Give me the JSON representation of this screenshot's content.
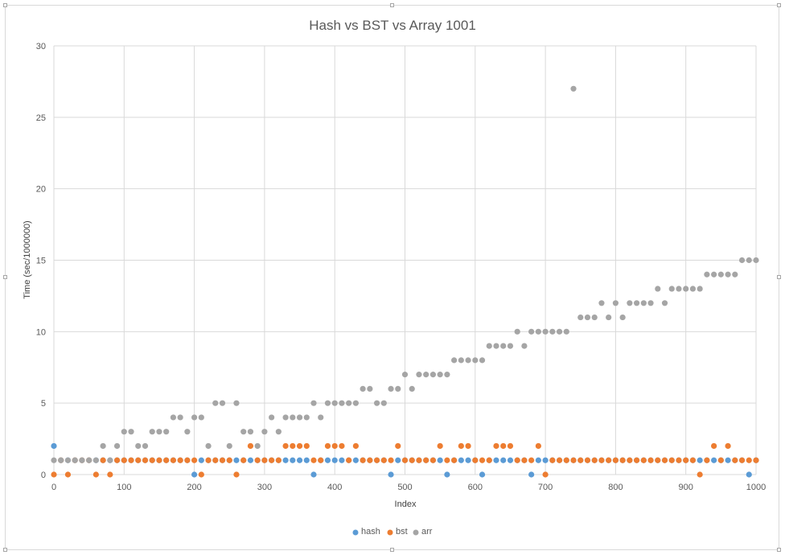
{
  "chart_data": {
    "type": "scatter",
    "title": "Hash vs BST vs Array 1001",
    "xlabel": "Index",
    "ylabel": "Time (sec/1000000)",
    "xlim": [
      0,
      1000
    ],
    "ylim": [
      0,
      30
    ],
    "xticks": [
      0,
      100,
      200,
      300,
      400,
      500,
      600,
      700,
      800,
      900,
      1000
    ],
    "yticks": [
      0,
      5,
      10,
      15,
      20,
      25,
      30
    ],
    "grid": true,
    "legend_position": "bottom",
    "x": [
      0,
      10,
      20,
      30,
      40,
      50,
      60,
      70,
      80,
      90,
      100,
      110,
      120,
      130,
      140,
      150,
      160,
      170,
      180,
      190,
      200,
      210,
      220,
      230,
      240,
      250,
      260,
      270,
      280,
      290,
      300,
      310,
      320,
      330,
      340,
      350,
      360,
      370,
      380,
      390,
      400,
      410,
      420,
      430,
      440,
      450,
      460,
      470,
      480,
      490,
      500,
      510,
      520,
      530,
      540,
      550,
      560,
      570,
      580,
      590,
      600,
      610,
      620,
      630,
      640,
      650,
      660,
      670,
      680,
      690,
      700,
      710,
      720,
      730,
      740,
      750,
      760,
      770,
      780,
      790,
      800,
      810,
      820,
      830,
      840,
      850,
      860,
      870,
      880,
      890,
      900,
      910,
      920,
      930,
      940,
      950,
      960,
      970,
      980,
      990,
      1000
    ],
    "series": [
      {
        "name": "hash",
        "color": "#5b9bd5",
        "values": [
          2,
          1,
          1,
          1,
          1,
          1,
          1,
          1,
          1,
          1,
          1,
          1,
          1,
          1,
          1,
          1,
          1,
          1,
          1,
          1,
          0,
          1,
          1,
          1,
          1,
          1,
          1,
          1,
          1,
          1,
          1,
          1,
          1,
          1,
          1,
          1,
          1,
          0,
          1,
          1,
          1,
          1,
          1,
          1,
          1,
          1,
          1,
          1,
          0,
          1,
          1,
          1,
          1,
          1,
          1,
          1,
          0,
          1,
          1,
          1,
          1,
          0,
          1,
          1,
          1,
          1,
          1,
          1,
          0,
          1,
          1,
          1,
          1,
          1,
          1,
          1,
          1,
          1,
          1,
          1,
          1,
          1,
          1,
          1,
          1,
          1,
          1,
          1,
          1,
          1,
          1,
          1,
          1,
          1,
          1,
          1,
          1,
          1,
          1,
          0,
          1
        ]
      },
      {
        "name": "bst",
        "color": "#ed7d31",
        "values": [
          0,
          1,
          0,
          1,
          1,
          1,
          0,
          1,
          0,
          1,
          1,
          1,
          1,
          1,
          1,
          1,
          1,
          1,
          1,
          1,
          1,
          0,
          1,
          1,
          1,
          1,
          0,
          1,
          2,
          1,
          1,
          1,
          1,
          2,
          2,
          2,
          2,
          1,
          1,
          2,
          2,
          2,
          1,
          2,
          1,
          1,
          1,
          1,
          1,
          2,
          1,
          1,
          1,
          1,
          1,
          2,
          1,
          1,
          2,
          2,
          1,
          1,
          1,
          2,
          2,
          2,
          1,
          1,
          1,
          2,
          0,
          1,
          1,
          1,
          1,
          1,
          1,
          1,
          1,
          1,
          1,
          1,
          1,
          1,
          1,
          1,
          1,
          1,
          1,
          1,
          1,
          1,
          0,
          1,
          2,
          1,
          2,
          1,
          1,
          1,
          1
        ]
      },
      {
        "name": "arr",
        "color": "#a5a5a5",
        "values": [
          1,
          1,
          1,
          1,
          1,
          1,
          1,
          2,
          1,
          2,
          3,
          3,
          2,
          2,
          3,
          3,
          3,
          4,
          4,
          3,
          4,
          4,
          2,
          5,
          5,
          2,
          5,
          3,
          3,
          2,
          3,
          4,
          3,
          4,
          4,
          4,
          4,
          5,
          4,
          5,
          5,
          5,
          5,
          5,
          6,
          6,
          5,
          5,
          6,
          6,
          7,
          6,
          7,
          7,
          7,
          7,
          7,
          8,
          8,
          8,
          8,
          8,
          9,
          9,
          9,
          9,
          10,
          9,
          10,
          10,
          10,
          10,
          10,
          10,
          27,
          11,
          11,
          11,
          12,
          11,
          12,
          11,
          12,
          12,
          12,
          12,
          13,
          12,
          13,
          13,
          13,
          13,
          13,
          14,
          14,
          14,
          14,
          14,
          15,
          15,
          15
        ]
      }
    ]
  }
}
